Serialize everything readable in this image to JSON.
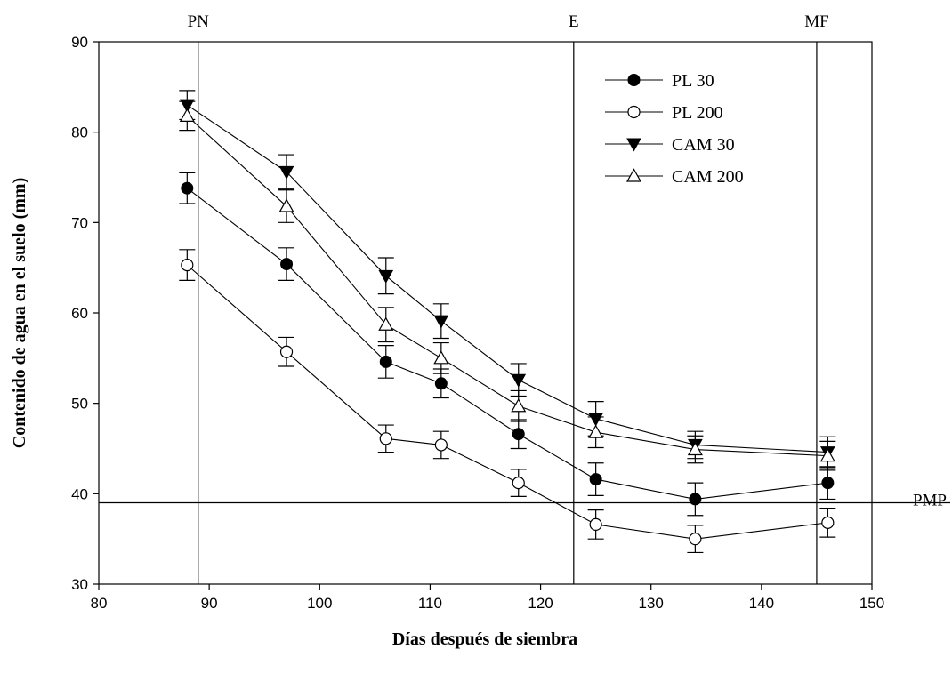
{
  "chart_data": {
    "type": "line",
    "title": "",
    "xlabel": "Días después de siembra",
    "ylabel": "Contenido de agua en el suelo (mm)",
    "xlim": [
      80,
      150
    ],
    "ylim": [
      30,
      90
    ],
    "x_ticks": [
      80,
      90,
      100,
      110,
      120,
      130,
      140,
      150
    ],
    "y_ticks": [
      30,
      40,
      50,
      60,
      70,
      80,
      90
    ],
    "grid": false,
    "legend_position": "top-right",
    "x": [
      88,
      97,
      106,
      111,
      118,
      125,
      134,
      146
    ],
    "series": [
      {
        "name": "PL 30",
        "marker": "filled-circle",
        "values": [
          73.8,
          65.4,
          54.6,
          52.2,
          46.6,
          41.6,
          39.4,
          41.2
        ],
        "error": [
          1.7,
          1.8,
          1.8,
          1.6,
          1.6,
          1.8,
          1.8,
          1.8
        ]
      },
      {
        "name": "PL 200",
        "marker": "open-circle",
        "values": [
          65.3,
          55.7,
          46.1,
          45.4,
          41.2,
          36.6,
          35.0,
          36.8
        ],
        "error": [
          1.7,
          1.6,
          1.5,
          1.5,
          1.5,
          1.6,
          1.5,
          1.6
        ]
      },
      {
        "name": "CAM 30",
        "marker": "filled-triangle-down",
        "values": [
          83.0,
          75.6,
          64.1,
          59.1,
          52.6,
          48.3,
          45.4,
          44.6
        ],
        "error": [
          1.6,
          1.9,
          2.0,
          1.9,
          1.8,
          1.9,
          1.5,
          1.7
        ]
      },
      {
        "name": "CAM 200",
        "marker": "open-triangle-up",
        "values": [
          81.8,
          71.8,
          58.7,
          55.0,
          49.7,
          46.8,
          44.9,
          44.2
        ],
        "error": [
          1.6,
          1.8,
          1.9,
          1.7,
          1.7,
          1.7,
          1.5,
          1.6
        ]
      }
    ],
    "reference_lines": [
      {
        "axis": "x",
        "value": 89,
        "label": "PN"
      },
      {
        "axis": "x",
        "value": 123,
        "label": "E"
      },
      {
        "axis": "x",
        "value": 145,
        "label": "MF"
      },
      {
        "axis": "y",
        "value": 39,
        "label": "PMP"
      }
    ]
  }
}
